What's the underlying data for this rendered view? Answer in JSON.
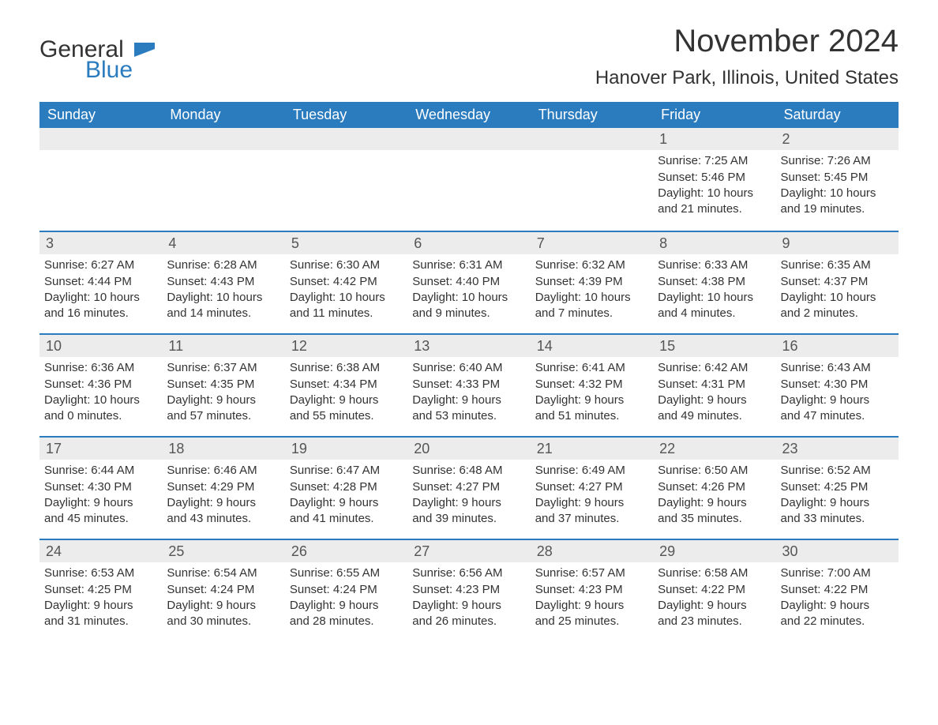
{
  "brand": {
    "general": "General",
    "blue": "Blue"
  },
  "title": "November 2024",
  "location": "Hanover Park, Illinois, United States",
  "colors": {
    "header_bg": "#2b7bbf",
    "daybar_bg": "#ececec",
    "border": "#2b7bbf",
    "text": "#333333",
    "logo_blue": "#2b7bbf"
  },
  "day_names": [
    "Sunday",
    "Monday",
    "Tuesday",
    "Wednesday",
    "Thursday",
    "Friday",
    "Saturday"
  ],
  "weeks": [
    [
      {
        "empty": true
      },
      {
        "empty": true
      },
      {
        "empty": true
      },
      {
        "empty": true
      },
      {
        "empty": true
      },
      {
        "day": "1",
        "sunrise": "Sunrise: 7:25 AM",
        "sunset": "Sunset: 5:46 PM",
        "daylight1": "Daylight: 10 hours",
        "daylight2": "and 21 minutes."
      },
      {
        "day": "2",
        "sunrise": "Sunrise: 7:26 AM",
        "sunset": "Sunset: 5:45 PM",
        "daylight1": "Daylight: 10 hours",
        "daylight2": "and 19 minutes."
      }
    ],
    [
      {
        "day": "3",
        "sunrise": "Sunrise: 6:27 AM",
        "sunset": "Sunset: 4:44 PM",
        "daylight1": "Daylight: 10 hours",
        "daylight2": "and 16 minutes."
      },
      {
        "day": "4",
        "sunrise": "Sunrise: 6:28 AM",
        "sunset": "Sunset: 4:43 PM",
        "daylight1": "Daylight: 10 hours",
        "daylight2": "and 14 minutes."
      },
      {
        "day": "5",
        "sunrise": "Sunrise: 6:30 AM",
        "sunset": "Sunset: 4:42 PM",
        "daylight1": "Daylight: 10 hours",
        "daylight2": "and 11 minutes."
      },
      {
        "day": "6",
        "sunrise": "Sunrise: 6:31 AM",
        "sunset": "Sunset: 4:40 PM",
        "daylight1": "Daylight: 10 hours",
        "daylight2": "and 9 minutes."
      },
      {
        "day": "7",
        "sunrise": "Sunrise: 6:32 AM",
        "sunset": "Sunset: 4:39 PM",
        "daylight1": "Daylight: 10 hours",
        "daylight2": "and 7 minutes."
      },
      {
        "day": "8",
        "sunrise": "Sunrise: 6:33 AM",
        "sunset": "Sunset: 4:38 PM",
        "daylight1": "Daylight: 10 hours",
        "daylight2": "and 4 minutes."
      },
      {
        "day": "9",
        "sunrise": "Sunrise: 6:35 AM",
        "sunset": "Sunset: 4:37 PM",
        "daylight1": "Daylight: 10 hours",
        "daylight2": "and 2 minutes."
      }
    ],
    [
      {
        "day": "10",
        "sunrise": "Sunrise: 6:36 AM",
        "sunset": "Sunset: 4:36 PM",
        "daylight1": "Daylight: 10 hours",
        "daylight2": "and 0 minutes."
      },
      {
        "day": "11",
        "sunrise": "Sunrise: 6:37 AM",
        "sunset": "Sunset: 4:35 PM",
        "daylight1": "Daylight: 9 hours",
        "daylight2": "and 57 minutes."
      },
      {
        "day": "12",
        "sunrise": "Sunrise: 6:38 AM",
        "sunset": "Sunset: 4:34 PM",
        "daylight1": "Daylight: 9 hours",
        "daylight2": "and 55 minutes."
      },
      {
        "day": "13",
        "sunrise": "Sunrise: 6:40 AM",
        "sunset": "Sunset: 4:33 PM",
        "daylight1": "Daylight: 9 hours",
        "daylight2": "and 53 minutes."
      },
      {
        "day": "14",
        "sunrise": "Sunrise: 6:41 AM",
        "sunset": "Sunset: 4:32 PM",
        "daylight1": "Daylight: 9 hours",
        "daylight2": "and 51 minutes."
      },
      {
        "day": "15",
        "sunrise": "Sunrise: 6:42 AM",
        "sunset": "Sunset: 4:31 PM",
        "daylight1": "Daylight: 9 hours",
        "daylight2": "and 49 minutes."
      },
      {
        "day": "16",
        "sunrise": "Sunrise: 6:43 AM",
        "sunset": "Sunset: 4:30 PM",
        "daylight1": "Daylight: 9 hours",
        "daylight2": "and 47 minutes."
      }
    ],
    [
      {
        "day": "17",
        "sunrise": "Sunrise: 6:44 AM",
        "sunset": "Sunset: 4:30 PM",
        "daylight1": "Daylight: 9 hours",
        "daylight2": "and 45 minutes."
      },
      {
        "day": "18",
        "sunrise": "Sunrise: 6:46 AM",
        "sunset": "Sunset: 4:29 PM",
        "daylight1": "Daylight: 9 hours",
        "daylight2": "and 43 minutes."
      },
      {
        "day": "19",
        "sunrise": "Sunrise: 6:47 AM",
        "sunset": "Sunset: 4:28 PM",
        "daylight1": "Daylight: 9 hours",
        "daylight2": "and 41 minutes."
      },
      {
        "day": "20",
        "sunrise": "Sunrise: 6:48 AM",
        "sunset": "Sunset: 4:27 PM",
        "daylight1": "Daylight: 9 hours",
        "daylight2": "and 39 minutes."
      },
      {
        "day": "21",
        "sunrise": "Sunrise: 6:49 AM",
        "sunset": "Sunset: 4:27 PM",
        "daylight1": "Daylight: 9 hours",
        "daylight2": "and 37 minutes."
      },
      {
        "day": "22",
        "sunrise": "Sunrise: 6:50 AM",
        "sunset": "Sunset: 4:26 PM",
        "daylight1": "Daylight: 9 hours",
        "daylight2": "and 35 minutes."
      },
      {
        "day": "23",
        "sunrise": "Sunrise: 6:52 AM",
        "sunset": "Sunset: 4:25 PM",
        "daylight1": "Daylight: 9 hours",
        "daylight2": "and 33 minutes."
      }
    ],
    [
      {
        "day": "24",
        "sunrise": "Sunrise: 6:53 AM",
        "sunset": "Sunset: 4:25 PM",
        "daylight1": "Daylight: 9 hours",
        "daylight2": "and 31 minutes."
      },
      {
        "day": "25",
        "sunrise": "Sunrise: 6:54 AM",
        "sunset": "Sunset: 4:24 PM",
        "daylight1": "Daylight: 9 hours",
        "daylight2": "and 30 minutes."
      },
      {
        "day": "26",
        "sunrise": "Sunrise: 6:55 AM",
        "sunset": "Sunset: 4:24 PM",
        "daylight1": "Daylight: 9 hours",
        "daylight2": "and 28 minutes."
      },
      {
        "day": "27",
        "sunrise": "Sunrise: 6:56 AM",
        "sunset": "Sunset: 4:23 PM",
        "daylight1": "Daylight: 9 hours",
        "daylight2": "and 26 minutes."
      },
      {
        "day": "28",
        "sunrise": "Sunrise: 6:57 AM",
        "sunset": "Sunset: 4:23 PM",
        "daylight1": "Daylight: 9 hours",
        "daylight2": "and 25 minutes."
      },
      {
        "day": "29",
        "sunrise": "Sunrise: 6:58 AM",
        "sunset": "Sunset: 4:22 PM",
        "daylight1": "Daylight: 9 hours",
        "daylight2": "and 23 minutes."
      },
      {
        "day": "30",
        "sunrise": "Sunrise: 7:00 AM",
        "sunset": "Sunset: 4:22 PM",
        "daylight1": "Daylight: 9 hours",
        "daylight2": "and 22 minutes."
      }
    ]
  ]
}
